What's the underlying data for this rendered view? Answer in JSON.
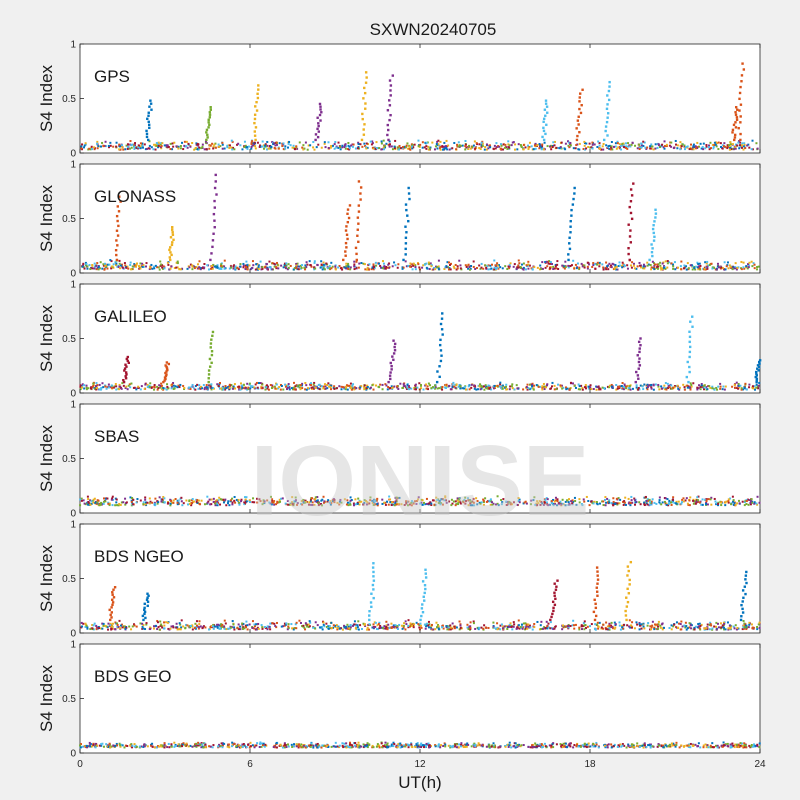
{
  "figure": {
    "title": "SXWN20240705",
    "watermark": "IONISE",
    "xlabel": "UT(h)",
    "background": "#f0f0f0",
    "axes_bg": "#ffffff"
  },
  "chart_data": {
    "type": "scatter",
    "title": "SXWN20240705",
    "xlabel": "UT(h)",
    "xlim": [
      0,
      24
    ],
    "xticks": [
      "0",
      "6",
      "12",
      "18",
      "24"
    ],
    "yticks": [
      "0",
      "0.5",
      "1"
    ],
    "ylim": [
      0,
      1
    ],
    "series_colors": [
      "#0072BD",
      "#D95319",
      "#EDB120",
      "#7E2F8E",
      "#77AC30",
      "#4DBEEE",
      "#A2142F"
    ],
    "panels": [
      {
        "label": "GPS",
        "ylabel": "S4 Index",
        "baseline": [
          0.03,
          0.12
        ],
        "spikes": [
          {
            "x": 2.5,
            "peak": 0.48,
            "color": 0
          },
          {
            "x": 4.6,
            "peak": 0.42,
            "color": 4
          },
          {
            "x": 6.3,
            "peak": 0.62,
            "color": 2
          },
          {
            "x": 8.5,
            "peak": 0.45,
            "color": 3
          },
          {
            "x": 10.1,
            "peak": 0.74,
            "color": 2
          },
          {
            "x": 11.0,
            "peak": 0.71,
            "color": 3
          },
          {
            "x": 16.5,
            "peak": 0.48,
            "color": 5
          },
          {
            "x": 17.7,
            "peak": 0.58,
            "color": 1
          },
          {
            "x": 18.7,
            "peak": 0.65,
            "color": 5
          },
          {
            "x": 23.2,
            "peak": 0.42,
            "color": 1
          },
          {
            "x": 23.4,
            "peak": 0.82,
            "color": 1
          }
        ]
      },
      {
        "label": "GLONASS",
        "ylabel": "S4 Index",
        "baseline": [
          0.03,
          0.12
        ],
        "spikes": [
          {
            "x": 1.4,
            "peak": 0.7,
            "color": 1
          },
          {
            "x": 4.8,
            "peak": 0.9,
            "color": 3
          },
          {
            "x": 9.5,
            "peak": 0.62,
            "color": 1
          },
          {
            "x": 9.9,
            "peak": 0.84,
            "color": 1
          },
          {
            "x": 11.6,
            "peak": 0.78,
            "color": 0
          },
          {
            "x": 17.4,
            "peak": 0.78,
            "color": 0
          },
          {
            "x": 19.5,
            "peak": 0.82,
            "color": 6
          },
          {
            "x": 20.3,
            "peak": 0.58,
            "color": 5
          },
          {
            "x": 3.3,
            "peak": 0.42,
            "color": 2
          }
        ]
      },
      {
        "label": "GALILEO",
        "ylabel": "S4 Index",
        "baseline": [
          0.03,
          0.1
        ],
        "spikes": [
          {
            "x": 1.7,
            "peak": 0.33,
            "color": 6
          },
          {
            "x": 3.1,
            "peak": 0.28,
            "color": 1
          },
          {
            "x": 4.7,
            "peak": 0.56,
            "color": 4
          },
          {
            "x": 11.1,
            "peak": 0.48,
            "color": 3
          },
          {
            "x": 12.8,
            "peak": 0.73,
            "color": 0
          },
          {
            "x": 19.8,
            "peak": 0.5,
            "color": 3
          },
          {
            "x": 21.6,
            "peak": 0.7,
            "color": 5
          },
          {
            "x": 24.0,
            "peak": 0.3,
            "color": 0
          }
        ]
      },
      {
        "label": "SBAS",
        "ylabel": "S4 Index",
        "baseline": [
          0.07,
          0.16
        ],
        "spikes": []
      },
      {
        "label": "BDS NGEO",
        "ylabel": "S4 Index",
        "baseline": [
          0.03,
          0.12
        ],
        "spikes": [
          {
            "x": 1.2,
            "peak": 0.42,
            "color": 1
          },
          {
            "x": 2.4,
            "peak": 0.36,
            "color": 0
          },
          {
            "x": 10.4,
            "peak": 0.64,
            "color": 5
          },
          {
            "x": 12.2,
            "peak": 0.58,
            "color": 5
          },
          {
            "x": 16.8,
            "peak": 0.48,
            "color": 6
          },
          {
            "x": 18.3,
            "peak": 0.6,
            "color": 1
          },
          {
            "x": 19.4,
            "peak": 0.65,
            "color": 2
          },
          {
            "x": 23.5,
            "peak": 0.56,
            "color": 0
          }
        ]
      },
      {
        "label": "BDS GEO",
        "ylabel": "S4 Index",
        "baseline": [
          0.05,
          0.1
        ],
        "spikes": []
      }
    ]
  }
}
